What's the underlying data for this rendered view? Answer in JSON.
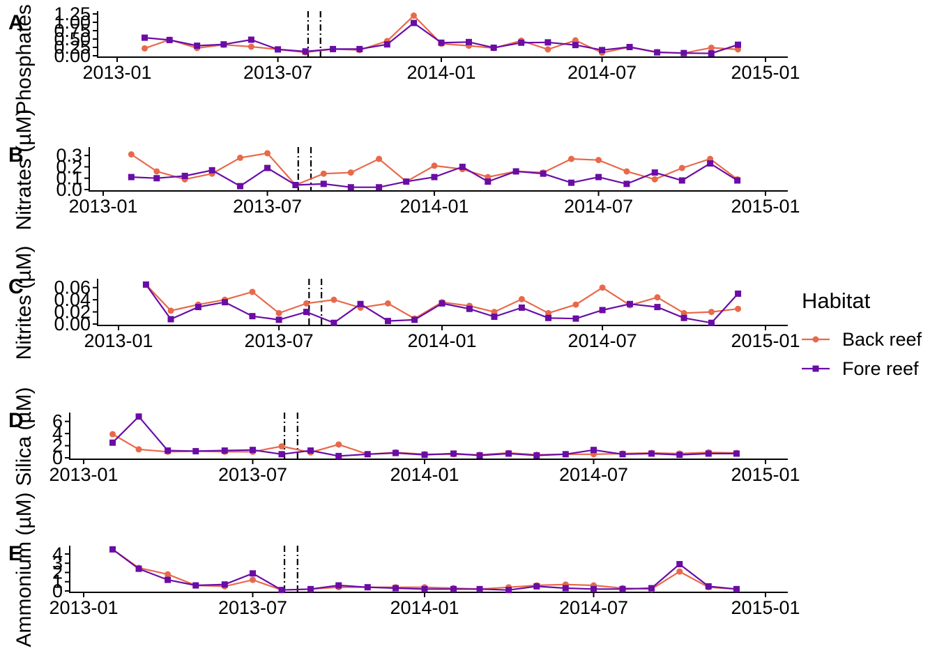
{
  "chart_data": {
    "type": "line",
    "dates": [
      "2013-02-01",
      "2013-03-01",
      "2013-04-01",
      "2013-05-01",
      "2013-06-01",
      "2013-07-01",
      "2013-08-01",
      "2013-09-01",
      "2013-10-01",
      "2013-11-01",
      "2013-12-01",
      "2014-01-01",
      "2014-02-01",
      "2014-03-01",
      "2014-04-01",
      "2014-05-01",
      "2014-06-01",
      "2014-07-01",
      "2014-08-01",
      "2014-09-01",
      "2014-10-01",
      "2014-11-01",
      "2014-12-01"
    ],
    "x_ticks": [
      "2013-01",
      "2013-07",
      "2014-01",
      "2014-07",
      "2015-01"
    ],
    "event_lines": [
      {
        "date": "2013-08-04",
        "style": "dash-dot"
      },
      {
        "date": "2013-08-18",
        "style": "dash-dot"
      }
    ],
    "legend": {
      "title": "Habitat",
      "position": "right",
      "entries": [
        {
          "name": "Back reef",
          "color": "#e8694a",
          "marker": "circle"
        },
        {
          "name": "Fore reef",
          "color": "#6a0ca6",
          "marker": "square"
        }
      ]
    },
    "panels": [
      {
        "letter": "A",
        "ylabel": "Phosphates (µM)",
        "ylim": [
          0,
          1.25
        ],
        "yticks": [
          "0.00",
          "0.25",
          "0.50",
          "0.75",
          "1.00",
          "1.25"
        ],
        "series": [
          {
            "name": "Back reef",
            "values": [
              0.22,
              0.48,
              0.23,
              0.33,
              0.27,
              0.19,
              0.1,
              0.2,
              0.17,
              0.44,
              1.2,
              0.36,
              0.3,
              0.23,
              0.45,
              0.19,
              0.46,
              0.09,
              0.26,
              0.11,
              0.08,
              0.24,
              0.19
            ]
          },
          {
            "name": "Fore reef",
            "values": [
              0.54,
              0.47,
              0.3,
              0.34,
              0.48,
              0.19,
              0.13,
              0.2,
              0.2,
              0.34,
              0.98,
              0.39,
              0.41,
              0.24,
              0.39,
              0.4,
              0.32,
              0.17,
              0.26,
              0.1,
              0.08,
              0.07,
              0.33
            ]
          }
        ]
      },
      {
        "letter": "B",
        "ylabel": "Nitrates (µM)",
        "ylim": [
          0,
          0.35
        ],
        "yticks": [
          "0.0",
          "0.1",
          "0.2",
          "0.3"
        ],
        "series": [
          {
            "name": "Back reef",
            "values": [
              0.31,
              0.16,
              0.09,
              0.14,
              0.28,
              0.32,
              0.04,
              0.14,
              0.15,
              0.27,
              0.07,
              0.21,
              0.18,
              0.11,
              0.16,
              0.15,
              0.27,
              0.26,
              0.16,
              0.09,
              0.19,
              0.27,
              0.09
            ]
          },
          {
            "name": "Fore reef",
            "values": [
              0.11,
              0.1,
              0.12,
              0.17,
              0.03,
              0.19,
              0.04,
              0.05,
              0.02,
              0.02,
              0.07,
              0.11,
              0.2,
              0.07,
              0.16,
              0.14,
              0.06,
              0.11,
              0.05,
              0.15,
              0.08,
              0.23,
              0.08
            ]
          }
        ]
      },
      {
        "letter": "C",
        "ylabel": "Nitrites (µM)",
        "ylim": [
          0,
          0.07
        ],
        "yticks": [
          "0.00",
          "0.02",
          "0.04",
          "0.06"
        ],
        "series": [
          {
            "name": "Back reef",
            "values": [
              0.065,
              0.022,
              0.032,
              0.04,
              0.053,
              0.018,
              0.034,
              0.04,
              0.027,
              0.034,
              0.009,
              0.036,
              0.03,
              0.02,
              0.041,
              0.018,
              0.032,
              0.06,
              0.031,
              0.044,
              0.018,
              0.02,
              0.025
            ]
          },
          {
            "name": "Fore reef",
            "values": [
              0.065,
              0.008,
              0.028,
              0.036,
              0.013,
              0.007,
              0.02,
              0.002,
              0.033,
              0.005,
              0.007,
              0.034,
              0.025,
              0.012,
              0.027,
              0.01,
              0.009,
              0.023,
              0.033,
              0.028,
              0.01,
              0.002,
              0.05
            ]
          }
        ]
      },
      {
        "letter": "D",
        "ylabel": "Silica (µM)",
        "ylim": [
          0,
          7
        ],
        "yticks": [
          "0",
          "2",
          "4",
          "6"
        ],
        "series": [
          {
            "name": "Back reef",
            "values": [
              3.9,
              1.4,
              1.0,
              1.1,
              1.0,
              1.0,
              1.9,
              0.9,
              2.2,
              0.6,
              0.9,
              0.6,
              0.6,
              0.5,
              0.8,
              0.5,
              0.6,
              0.6,
              0.7,
              0.8,
              0.7,
              0.9,
              0.8
            ]
          },
          {
            "name": "Fore reef",
            "values": [
              2.5,
              6.8,
              1.2,
              1.1,
              1.2,
              1.3,
              0.6,
              1.2,
              0.3,
              0.6,
              0.8,
              0.5,
              0.7,
              0.4,
              0.7,
              0.4,
              0.6,
              1.3,
              0.6,
              0.7,
              0.5,
              0.7,
              0.7
            ]
          }
        ]
      },
      {
        "letter": "E",
        "ylabel": "Ammonium (µM)",
        "ylim": [
          0,
          4.6
        ],
        "yticks": [
          "0",
          "1",
          "2",
          "3",
          "4"
        ],
        "series": [
          {
            "name": "Back reef",
            "values": [
              4.5,
              2.5,
              1.8,
              0.6,
              0.5,
              1.2,
              0.1,
              0.2,
              0.4,
              0.4,
              0.4,
              0.4,
              0.3,
              0.2,
              0.4,
              0.6,
              0.7,
              0.6,
              0.3,
              0.2,
              2.1,
              0.4,
              0.2
            ]
          },
          {
            "name": "Fore reef",
            "values": [
              4.5,
              2.4,
              1.2,
              0.6,
              0.7,
              1.9,
              0.1,
              0.2,
              0.6,
              0.4,
              0.3,
              0.2,
              0.2,
              0.2,
              0.1,
              0.5,
              0.3,
              0.2,
              0.2,
              0.3,
              2.9,
              0.5,
              0.2
            ]
          }
        ]
      }
    ]
  }
}
